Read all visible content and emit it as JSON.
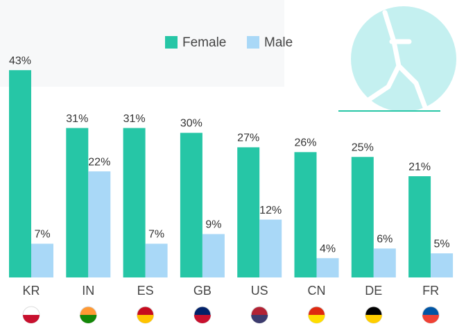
{
  "chart_data": {
    "type": "bar",
    "categories": [
      "KR",
      "IN",
      "ES",
      "GB",
      "US",
      "CN",
      "DE",
      "FR"
    ],
    "series": [
      {
        "name": "Female",
        "color": "#26c6a6",
        "values": [
          43,
          31,
          31,
          30,
          27,
          26,
          25,
          21
        ],
        "value_labels": [
          "43%",
          "31%",
          "31%",
          "30%",
          "27%",
          "26%",
          "25%",
          "21%"
        ]
      },
      {
        "name": "Male",
        "color": "#a9d8f7",
        "values": [
          7,
          22,
          7,
          9,
          12,
          4,
          6,
          5
        ],
        "value_labels": [
          "7%",
          "22%",
          "7%",
          "9%",
          "12%",
          "4%",
          "6%",
          "5%"
        ]
      }
    ]
  }
}
